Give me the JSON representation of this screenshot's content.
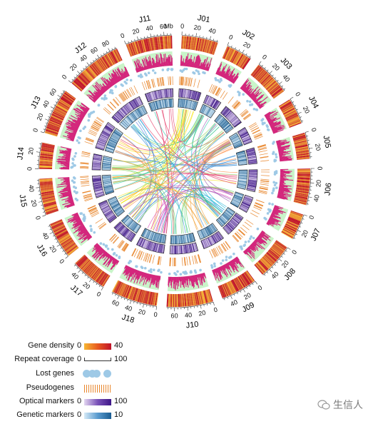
{
  "figure": {
    "chromosomes": [
      {
        "name": "J01",
        "ticks": [
          "0",
          "20",
          "40"
        ]
      },
      {
        "name": "J02",
        "ticks": [
          "0",
          "20"
        ]
      },
      {
        "name": "J03",
        "ticks": [
          "0",
          "20",
          "40"
        ]
      },
      {
        "name": "J04",
        "ticks": [
          "0",
          "20"
        ]
      },
      {
        "name": "J05",
        "ticks": [
          "0",
          "20"
        ]
      },
      {
        "name": "J06",
        "ticks": [
          "0",
          "20",
          "40"
        ]
      },
      {
        "name": "J07",
        "ticks": [
          "0",
          "20"
        ]
      },
      {
        "name": "J08",
        "ticks": [
          "0",
          "20",
          "40"
        ]
      },
      {
        "name": "J09",
        "ticks": [
          "0",
          "20",
          "40"
        ]
      },
      {
        "name": "J10",
        "ticks": [
          "0",
          "20",
          "40",
          "60"
        ]
      },
      {
        "name": "J18",
        "ticks": [
          "0",
          "20",
          "40",
          "60"
        ]
      },
      {
        "name": "J17",
        "ticks": [
          "0",
          "20",
          "40"
        ]
      },
      {
        "name": "J16",
        "ticks": [
          "0",
          "20",
          "40"
        ]
      },
      {
        "name": "J15",
        "ticks": [
          "0",
          "20",
          "40"
        ]
      },
      {
        "name": "J14",
        "ticks": [
          "0",
          "20"
        ]
      },
      {
        "name": "J13",
        "ticks": [
          "0",
          "20",
          "40",
          "60"
        ]
      },
      {
        "name": "J12",
        "ticks": [
          "0",
          "20",
          "40",
          "60",
          "80"
        ]
      },
      {
        "name": "J11",
        "ticks": [
          "0",
          "20",
          "40",
          "60"
        ]
      }
    ],
    "unit_label": "Mb"
  },
  "legend": {
    "gene_density": {
      "label": "Gene density",
      "min": "0",
      "max": "40"
    },
    "repeat_coverage": {
      "label": "Repeat coverage",
      "min": "0",
      "max": "100"
    },
    "lost_genes": {
      "label": "Lost genes"
    },
    "pseudogenes": {
      "label": "Pseudogenes"
    },
    "optical_markers": {
      "label": "Optical markers",
      "min": "0",
      "max": "100"
    },
    "genetic_markers": {
      "label": "Genetic markers",
      "min": "0",
      "max": "10"
    }
  },
  "colors": {
    "gene_density_low": "#f7b733",
    "gene_density_high": "#c0132a",
    "repeat_bg": "#c9f5c9",
    "repeat_fg": "#d4207a",
    "lost_genes": "#9ec9e6",
    "pseudogenes": "#e8862c",
    "optical_low": "#d8c8ec",
    "optical_high": "#3d1687",
    "genetic_low": "#cfe6f5",
    "genetic_high": "#1a5d92"
  },
  "watermark": {
    "text": "生信人"
  }
}
